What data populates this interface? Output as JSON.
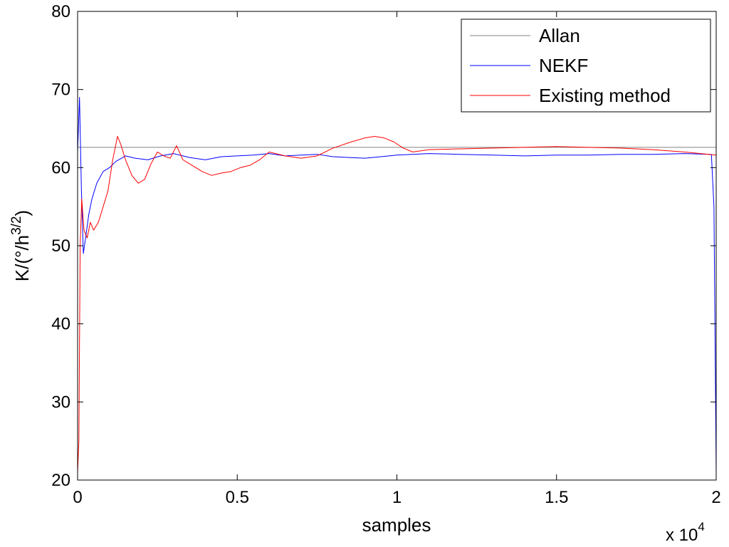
{
  "chart_data": {
    "type": "line",
    "title": "",
    "xlabel": "samples",
    "ylabel_base": "K/(°/h",
    "ylabel_sup": "3/2",
    "ylabel_close": ")",
    "x_multiplier_base": "x 10",
    "x_multiplier_exp": "4",
    "xlim": [
      0,
      20000
    ],
    "ylim": [
      20,
      80
    ],
    "x_ticks": [
      0,
      5000,
      10000,
      15000,
      20000
    ],
    "x_tick_labels": [
      "0",
      "0.5",
      "1",
      "1.5",
      "2"
    ],
    "y_ticks": [
      20,
      30,
      40,
      50,
      60,
      70,
      80
    ],
    "y_tick_labels": [
      "20",
      "30",
      "40",
      "50",
      "60",
      "70",
      "80"
    ],
    "grid": false,
    "legend_position": "top-right",
    "series": [
      {
        "name": "Allan",
        "color": "#808080",
        "x": [
          0,
          20000
        ],
        "y": [
          62.6,
          62.6
        ]
      },
      {
        "name": "NEKF",
        "color": "#0000ff",
        "x": [
          0,
          60,
          120,
          180,
          250,
          350,
          450,
          600,
          800,
          1000,
          1200,
          1500,
          1800,
          2200,
          2600,
          3000,
          3500,
          4000,
          4500,
          5000,
          5500,
          6000,
          6500,
          7000,
          7500,
          8000,
          8500,
          9000,
          9500,
          10000,
          11000,
          12000,
          13000,
          14000,
          15000,
          16000,
          17000,
          18000,
          19000,
          19850,
          19930,
          20000
        ],
        "y": [
          62,
          69,
          57,
          49,
          51,
          54,
          56,
          58,
          59.5,
          60,
          60.8,
          61.5,
          61.2,
          61,
          61.5,
          61.8,
          61.3,
          61,
          61.4,
          61.5,
          61.6,
          61.8,
          61.5,
          61.6,
          61.7,
          61.4,
          61.3,
          61.2,
          61.4,
          61.6,
          61.8,
          61.7,
          61.6,
          61.5,
          61.6,
          61.6,
          61.7,
          61.7,
          61.8,
          61.7,
          55,
          21
        ]
      },
      {
        "name": "Existing method",
        "color": "#ff0000",
        "x": [
          0,
          40,
          80,
          130,
          200,
          300,
          400,
          500,
          650,
          800,
          950,
          1100,
          1250,
          1350,
          1500,
          1700,
          1900,
          2100,
          2300,
          2500,
          2700,
          2900,
          3100,
          3300,
          3500,
          3700,
          3900,
          4200,
          4500,
          4800,
          5100,
          5400,
          5700,
          6000,
          6500,
          7000,
          7500,
          8000,
          8500,
          9000,
          9300,
          9600,
          9900,
          10200,
          10500,
          11000,
          12000,
          13000,
          14000,
          15000,
          16000,
          17000,
          18000,
          19000,
          20000
        ],
        "y": [
          21,
          25,
          50,
          56,
          52,
          51,
          53,
          52,
          53,
          55,
          57,
          61,
          64,
          63,
          61,
          59,
          58,
          58.5,
          60.5,
          62,
          61.5,
          61.2,
          62.8,
          61,
          60.5,
          60,
          59.5,
          59,
          59.3,
          59.5,
          60,
          60.3,
          61,
          62,
          61.5,
          61.2,
          61.5,
          62.5,
          63.2,
          63.8,
          64,
          63.8,
          63.3,
          62.5,
          62,
          62.3,
          62.4,
          62.5,
          62.6,
          62.7,
          62.6,
          62.5,
          62.3,
          62,
          61.6
        ]
      }
    ]
  }
}
